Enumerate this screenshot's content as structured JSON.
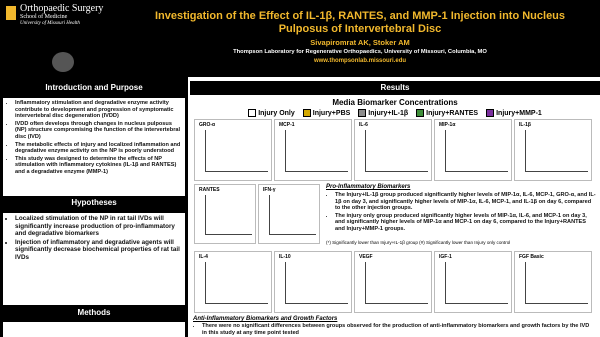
{
  "header": {
    "logo": {
      "line1": "Orthopaedic Surgery",
      "line2": "School of Medicine",
      "line3": "University of Missouri Health"
    },
    "title": "Investigation of the Effect of IL-1β, RANTES, and MMP-1 Injection into Nucleus Pulposus of Intervertebral Disc",
    "authors": "Sivapiromrat AK, Stoker AM",
    "affiliation": "Thompson Laboratory for Regenerative Orthopaedics, University of Missouri, Columbia, MO",
    "url": "www.thompsonlab.missouri.edu"
  },
  "intro": {
    "heading": "Introduction and Purpose",
    "bullets": [
      "Inflammatory stimulation and degradative enzyme activity contribute to development and progression of symptomatic intervertebral disc degeneration (IVDD)",
      "IVDD often develops through changes in nucleus pulposus (NP) structure compromising the function of the intervertebral disc (IVD)",
      "The metabolic effects of injury and localized inflammation and degradative enzyme activity on the NP is poorly understood",
      "This study was designed to determine the effects of NP stimulation with inflammatory cytokines (IL-1β and RANTES) and a degradative enzyme (MMP-1)"
    ]
  },
  "hypotheses": {
    "heading": "Hypotheses",
    "bullets": [
      "Localized stimulation of the NP in rat tail IVDs will significantly increase production of pro-inflammatory and degradative biomarkers",
      "Injection of inflammatory and degradative agents will significantly decrease biochemical properties of rat tail IVDs"
    ]
  },
  "methods": {
    "heading": "Methods"
  },
  "results": {
    "heading": "Results",
    "subtitle": "Media Biomarker Concentrations",
    "legend": [
      {
        "name": "Injury Only",
        "color": "#ffffff"
      },
      {
        "name": "Injury+PBS",
        "color": "#d4a900"
      },
      {
        "name": "Injury+IL-1β",
        "color": "#8c8c8c"
      },
      {
        "name": "Injury+RANTES",
        "color": "#3f8f3a"
      },
      {
        "name": "Injury+MMP-1",
        "color": "#7a2f9e"
      }
    ],
    "row1": [
      "GRO-α",
      "MCP-1",
      "IL-6",
      "MIP-1α",
      "IL-1β"
    ],
    "row2": [
      "RANTES",
      "IFN-γ"
    ],
    "row3": [
      "IL-4",
      "IL-10",
      "VEGF",
      "IGF-1",
      "FGF Basic"
    ],
    "pro": {
      "heading": "Pro-Inflammatory Biomarkers",
      "bullets": [
        "The Injury+IL-1β group produced significantly higher levels of MIP-1α, IL-6, MCP-1, GRO-α, and IL-1β on day 3, and significantly higher levels of MIP-1α, IL-6, MCP-1, and IL-1β on day 6, compared to the other injection groups.",
        "The injury only group produced significantly higher levels of MIP-1α, IL-6, and MCP-1 on day 3, and significantly higher levels of MIP-1α and MCP-1 on day 6, compared to the Injury+RANTES and Injury+MMP-1 groups."
      ],
      "note": "(*) Significantly lower than Injury+IL-1β group (#) Significantly lower than Injury only control"
    },
    "anti": {
      "heading": "Anti-Inflammatory Biomarkers and Growth Factors",
      "bullets": [
        "There were no significant differences between groups observed for the production of anti-inflammatory biomarkers and growth factors by the IVD in this study at any time point tested"
      ]
    }
  }
}
